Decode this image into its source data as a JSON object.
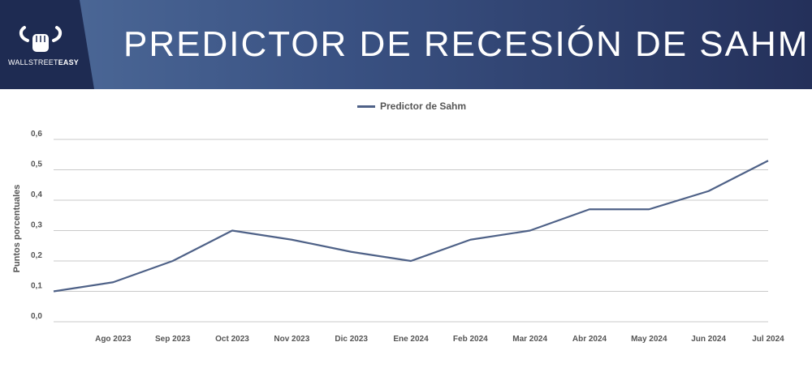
{
  "header": {
    "title": "PREDICTOR DE RECESIÓN DE SAHM",
    "logo_text_1": "WALLSTREET",
    "logo_text_2": "EASY"
  },
  "colors": {
    "line": "#4e6187",
    "grid": "#c9c9c9",
    "header": "#1e2b52"
  },
  "chart_data": {
    "type": "line",
    "title": "",
    "xlabel": "",
    "ylabel": "Puntos porcentuales",
    "legend": "top-center",
    "ylim": [
      0,
      0.6
    ],
    "yticks": [
      "0,0",
      "0,1",
      "0,2",
      "0,3",
      "0,4",
      "0,5",
      "0,6"
    ],
    "categories": [
      "",
      "Ago 2023",
      "Sep 2023",
      "Oct 2023",
      "Nov 2023",
      "Dic 2023",
      "Ene 2024",
      "Feb 2024",
      "Mar 2024",
      "Abr 2024",
      "May 2024",
      "Jun 2024",
      "Jul 2024"
    ],
    "series": [
      {
        "name": "Predictor de Sahm",
        "values": [
          0.1,
          0.13,
          0.2,
          0.3,
          0.27,
          0.23,
          0.2,
          0.27,
          0.3,
          0.37,
          0.37,
          0.43,
          0.53
        ]
      }
    ]
  }
}
